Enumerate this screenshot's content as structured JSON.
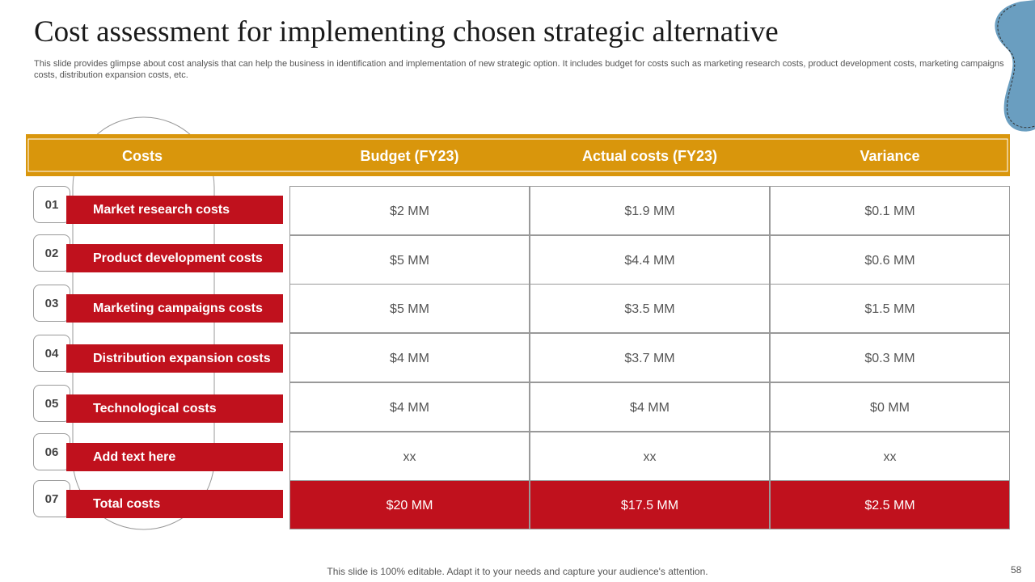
{
  "title": "Cost assessment for implementing chosen strategic alternative",
  "subtitle": "This slide provides glimpse about cost analysis that can help the  business in identification and implementation of new strategic option. It includes budget for costs such as marketing research costs, product development costs, marketing campaigns costs, distribution expansion costs, etc.",
  "table": {
    "headers": [
      "Costs",
      "Budget (FY23)",
      "Actual costs (FY23)",
      "Variance"
    ],
    "rows": [
      {
        "number": "01",
        "label": "Market research costs",
        "cells": [
          "$2 MM",
          "$1.9 MM",
          "$0.1 MM"
        ]
      },
      {
        "number": "02",
        "label": "Product development costs",
        "cells": [
          "$5 MM",
          "$4.4 MM",
          "$0.6 MM"
        ]
      },
      {
        "number": "03",
        "label": "Marketing campaigns costs",
        "cells": [
          "$5 MM",
          "$3.5 MM",
          "$1.5 MM"
        ]
      },
      {
        "number": "04",
        "label": "Distribution expansion costs",
        "cells": [
          "$4 MM",
          "$3.7 MM",
          "$0.3 MM"
        ]
      },
      {
        "number": "05",
        "label": "Technological costs",
        "cells": [
          "$4 MM",
          "$4 MM",
          "$0 MM"
        ]
      },
      {
        "number": "06",
        "label": "Add text here",
        "cells": [
          "xx",
          "xx",
          "xx"
        ]
      },
      {
        "number": "07",
        "label": "Total costs",
        "cells": [
          "$20 MM",
          "$17.5 MM",
          "$2.5 MM"
        ]
      }
    ]
  },
  "footer": "This slide is 100% editable. Adapt it to your needs and capture your audience's attention.",
  "page_number": "58"
}
